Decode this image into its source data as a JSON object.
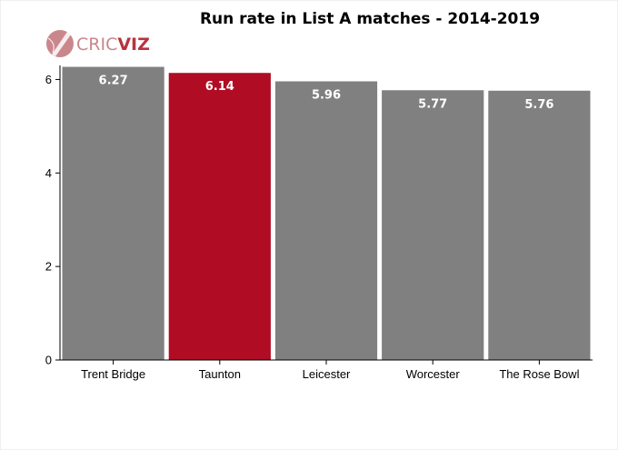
{
  "chart_data": {
    "type": "bar",
    "title": "Run rate in List A matches - 2014-2019",
    "xlabel": "",
    "ylabel": "",
    "categories": [
      "Trent Bridge",
      "Taunton",
      "Leicester",
      "Worcester",
      "The Rose Bowl"
    ],
    "values": [
      6.27,
      6.14,
      5.96,
      5.77,
      5.76
    ],
    "data_labels": [
      "6.27",
      "6.14",
      "5.96",
      "5.77",
      "5.76"
    ],
    "highlight_index": 1,
    "ylim": [
      0,
      6.3
    ],
    "yticks": [
      0,
      2,
      4,
      6
    ],
    "grid": false,
    "legend": "none",
    "colors": {
      "bar_default": "#808080",
      "bar_highlight": "#b00c24",
      "axis": "#000000",
      "label_text": "#ffffff"
    }
  },
  "branding": {
    "logo_text_part1": "CRIC",
    "logo_text_part2": "VIZ",
    "logo_icon": "cricket-ball-bat-icon",
    "logo_color_light": "#c9878c",
    "logo_color_strong": "#b9323f"
  }
}
